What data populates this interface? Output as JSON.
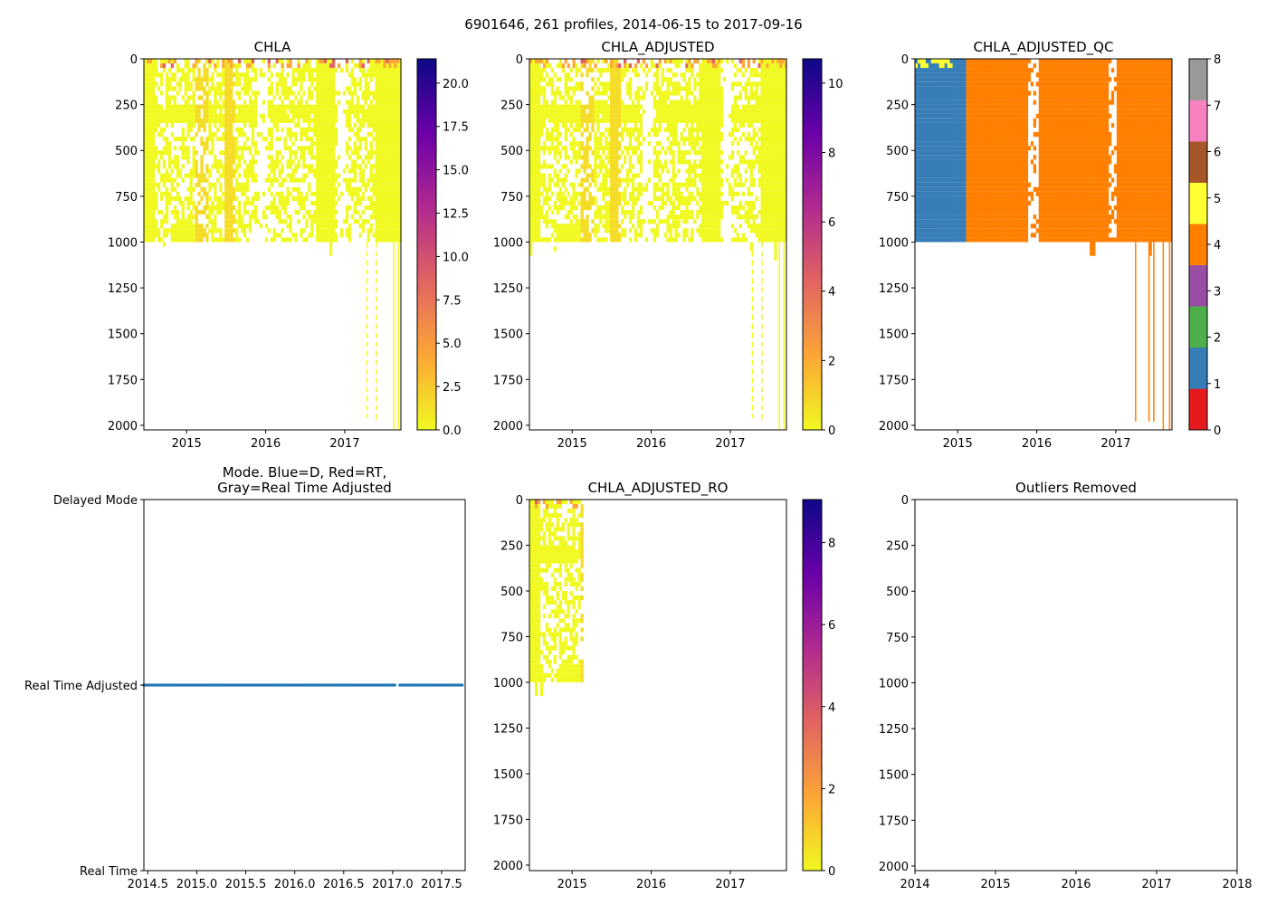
{
  "chart_data": {
    "title": "6901646, 261 profiles, 2014-06-15 to 2017-09-16",
    "panels": [
      {
        "id": "chla",
        "type": "heatmap",
        "title": [
          "CHLA"
        ],
        "xlim": [
          2014.46,
          2017.71
        ],
        "ylim": [
          2025,
          0
        ],
        "ylabel": "",
        "xlabel": "",
        "xticks": [
          {
            "v": 2015,
            "label": "2015"
          },
          {
            "v": 2016,
            "label": "2016"
          },
          {
            "v": 2017,
            "label": "2017"
          }
        ],
        "yticks": [
          {
            "v": 0,
            "label": "0"
          },
          {
            "v": 250,
            "label": "250"
          },
          {
            "v": 500,
            "label": "500"
          },
          {
            "v": 750,
            "label": "750"
          },
          {
            "v": 1000,
            "label": "1000"
          },
          {
            "v": 1250,
            "label": "1250"
          },
          {
            "v": 1500,
            "label": "1500"
          },
          {
            "v": 1750,
            "label": "1750"
          },
          {
            "v": 2000,
            "label": "2000"
          }
        ],
        "colorbar": {
          "cmap": "plasma_r",
          "range": [
            0,
            21.4
          ],
          "ticks": [
            {
              "v": 0,
              "label": "0.0"
            },
            {
              "v": 2.5,
              "label": "2.5"
            },
            {
              "v": 5,
              "label": "5.0"
            },
            {
              "v": 7.5,
              "label": "7.5"
            },
            {
              "v": 10,
              "label": "10.0"
            },
            {
              "v": 12.5,
              "label": "12.5"
            },
            {
              "v": 15,
              "label": "15.0"
            },
            {
              "v": 17.5,
              "label": "17.5"
            },
            {
              "v": 20,
              "label": "20.0"
            }
          ]
        },
        "data_summary": {
          "typical_value_range": [
            0,
            2.5
          ],
          "profile_depth_max": 1000
        }
      },
      {
        "id": "adj",
        "type": "heatmap",
        "title": [
          "CHLA_ADJUSTED"
        ],
        "xlim": [
          2014.46,
          2017.71
        ],
        "ylim": [
          2025,
          0
        ],
        "xticks": [
          {
            "v": 2015,
            "label": "2015"
          },
          {
            "v": 2016,
            "label": "2016"
          },
          {
            "v": 2017,
            "label": "2017"
          }
        ],
        "yticks": [
          {
            "v": 0,
            "label": "0"
          },
          {
            "v": 250,
            "label": "250"
          },
          {
            "v": 500,
            "label": "500"
          },
          {
            "v": 750,
            "label": "750"
          },
          {
            "v": 1000,
            "label": "1000"
          },
          {
            "v": 1250,
            "label": "1250"
          },
          {
            "v": 1500,
            "label": "1500"
          },
          {
            "v": 1750,
            "label": "1750"
          },
          {
            "v": 2000,
            "label": "2000"
          }
        ],
        "colorbar": {
          "cmap": "plasma_r",
          "range": [
            0,
            10.7
          ],
          "ticks": [
            {
              "v": 0,
              "label": "0"
            },
            {
              "v": 2,
              "label": "2"
            },
            {
              "v": 4,
              "label": "4"
            },
            {
              "v": 6,
              "label": "6"
            },
            {
              "v": 8,
              "label": "8"
            },
            {
              "v": 10,
              "label": "10"
            }
          ]
        },
        "data_summary": {
          "typical_value_range": [
            0,
            1.2
          ],
          "profile_depth_max": 1000
        }
      },
      {
        "id": "qc",
        "type": "heatmap",
        "title": [
          "CHLA_ADJUSTED_QC"
        ],
        "xlim": [
          2014.46,
          2017.71
        ],
        "ylim": [
          2025,
          0
        ],
        "xticks": [
          {
            "v": 2015,
            "label": "2015"
          },
          {
            "v": 2016,
            "label": "2016"
          },
          {
            "v": 2017,
            "label": "2017"
          }
        ],
        "yticks": [
          {
            "v": 0,
            "label": "0"
          },
          {
            "v": 250,
            "label": "250"
          },
          {
            "v": 500,
            "label": "500"
          },
          {
            "v": 750,
            "label": "750"
          },
          {
            "v": 1000,
            "label": "1000"
          },
          {
            "v": 1250,
            "label": "1250"
          },
          {
            "v": 1500,
            "label": "1500"
          },
          {
            "v": 1750,
            "label": "1750"
          },
          {
            "v": 2000,
            "label": "2000"
          }
        ],
        "colorbar": {
          "cmap": "discrete",
          "range": [
            0,
            8
          ],
          "colors": [
            "#e41a1c",
            "#377eb8",
            "#4daf4a",
            "#984ea3",
            "#ff7f00",
            "#ffff33",
            "#a65628",
            "#f781bf",
            "#999999"
          ],
          "ticks": [
            {
              "v": 0,
              "label": "0"
            },
            {
              "v": 1,
              "label": "1"
            },
            {
              "v": 2,
              "label": "2"
            },
            {
              "v": 3,
              "label": "3"
            },
            {
              "v": 4,
              "label": "4"
            },
            {
              "v": 5,
              "label": "5"
            },
            {
              "v": 6,
              "label": "6"
            },
            {
              "v": 7,
              "label": "7"
            },
            {
              "v": 8,
              "label": "8"
            }
          ]
        },
        "data_summary": {
          "flag_1_until": 2015.1,
          "flag_4_after": 2015.1,
          "flag_5_near_surface_early": true
        }
      },
      {
        "id": "mode",
        "type": "scatter",
        "title": [
          "Mode. Blue=D, Red=RT,",
          "Gray=Real Time Adjusted"
        ],
        "xlim": [
          2014.46,
          2017.74
        ],
        "ylim": [
          0,
          2
        ],
        "xticks": [
          {
            "v": 2014.5,
            "label": "2014.5"
          },
          {
            "v": 2015.0,
            "label": "2015.0"
          },
          {
            "v": 2015.5,
            "label": "2015.5"
          },
          {
            "v": 2016.0,
            "label": "2016.0"
          },
          {
            "v": 2016.5,
            "label": "2016.5"
          },
          {
            "v": 2017.0,
            "label": "2017.0"
          },
          {
            "v": 2017.5,
            "label": "2017.5"
          }
        ],
        "yticks": [
          {
            "v": 0,
            "label": "Real Time"
          },
          {
            "v": 1,
            "label": "Real Time Adjusted"
          },
          {
            "v": 2,
            "label": "Delayed Mode"
          }
        ],
        "series": [
          {
            "name": "Real Time Adjusted",
            "y": 1,
            "x_start": 2014.46,
            "x_end": 2017.71,
            "n": 261,
            "gap": [
              2017.03,
              2017.07
            ],
            "color": "#1f77b4"
          }
        ]
      },
      {
        "id": "ro",
        "type": "heatmap",
        "title": [
          "CHLA_ADJUSTED_RO"
        ],
        "xlim": [
          2014.46,
          2017.71
        ],
        "ylim": [
          2030,
          0
        ],
        "xticks": [
          {
            "v": 2015,
            "label": "2015"
          },
          {
            "v": 2016,
            "label": "2016"
          },
          {
            "v": 2017,
            "label": "2017"
          }
        ],
        "yticks": [
          {
            "v": 0,
            "label": "0"
          },
          {
            "v": 250,
            "label": "250"
          },
          {
            "v": 500,
            "label": "500"
          },
          {
            "v": 750,
            "label": "750"
          },
          {
            "v": 1000,
            "label": "1000"
          },
          {
            "v": 1250,
            "label": "1250"
          },
          {
            "v": 1500,
            "label": "1500"
          },
          {
            "v": 1750,
            "label": "1750"
          },
          {
            "v": 2000,
            "label": "2000"
          }
        ],
        "colorbar": {
          "cmap": "plasma_r",
          "range": [
            0,
            9.05
          ],
          "ticks": [
            {
              "v": 0,
              "label": "0"
            },
            {
              "v": 2,
              "label": "2"
            },
            {
              "v": 4,
              "label": "4"
            },
            {
              "v": 6,
              "label": "6"
            },
            {
              "v": 8,
              "label": "8"
            }
          ]
        },
        "data_summary": {
          "x_end": 2015.12,
          "profile_depth_max": 1000
        }
      },
      {
        "id": "out",
        "type": "scatter",
        "title": [
          "Outliers Removed"
        ],
        "xlim": [
          2014,
          2018
        ],
        "ylim": [
          2025,
          0
        ],
        "xticks": [
          {
            "v": 2014,
            "label": "2014"
          },
          {
            "v": 2015,
            "label": "2015"
          },
          {
            "v": 2016,
            "label": "2016"
          },
          {
            "v": 2017,
            "label": "2017"
          },
          {
            "v": 2018,
            "label": "2018"
          }
        ],
        "yticks": [
          {
            "v": 0,
            "label": "0"
          },
          {
            "v": 250,
            "label": "250"
          },
          {
            "v": 500,
            "label": "500"
          },
          {
            "v": 750,
            "label": "750"
          },
          {
            "v": 1000,
            "label": "1000"
          },
          {
            "v": 1250,
            "label": "1250"
          },
          {
            "v": 1500,
            "label": "1500"
          },
          {
            "v": 1750,
            "label": "1750"
          },
          {
            "v": 2000,
            "label": "2000"
          }
        ],
        "series": []
      }
    ]
  }
}
